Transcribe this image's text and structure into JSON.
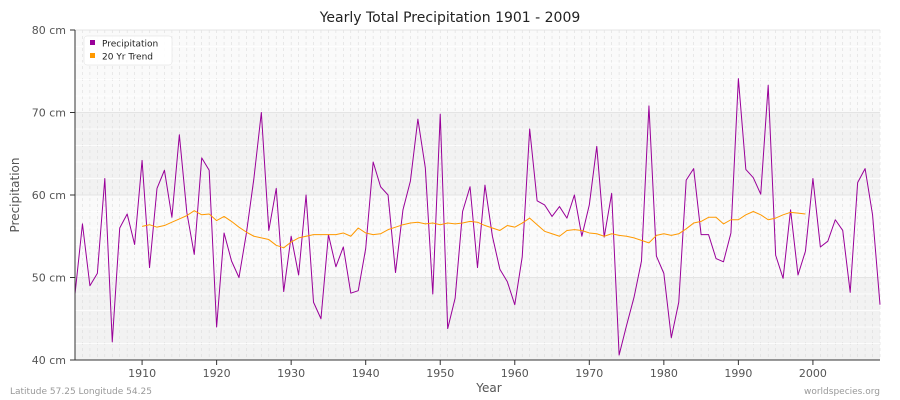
{
  "chart_data": {
    "type": "line",
    "title": "Yearly Total Precipitation 1901 - 2009",
    "xlabel": "Year",
    "ylabel": "Precipitation",
    "xlim": [
      1901,
      2009
    ],
    "ylim": [
      40,
      80
    ],
    "x_ticks": [
      1910,
      1920,
      1930,
      1940,
      1950,
      1960,
      1970,
      1980,
      1990,
      2000
    ],
    "y_ticks": [
      {
        "value": 40,
        "label": "40 cm"
      },
      {
        "value": 50,
        "label": "50 cm"
      },
      {
        "value": 60,
        "label": "60 cm"
      },
      {
        "value": 70,
        "label": "70 cm"
      },
      {
        "value": 80,
        "label": "80 cm"
      }
    ],
    "grid": true,
    "legend_position": "top-left",
    "series": [
      {
        "name": "Precipitation",
        "color": "#990099",
        "x_start": 1901,
        "values": [
          48,
          56.5,
          49,
          50.5,
          62,
          42.2,
          56,
          57.7,
          54,
          64.2,
          51.2,
          60.8,
          63,
          57.3,
          67.3,
          57.9,
          52.8,
          64.5,
          63,
          44,
          55.4,
          52,
          50,
          55.4,
          62,
          70,
          55.7,
          60.8,
          48.3,
          55,
          50.3,
          60,
          47,
          45,
          55.2,
          51.3,
          53.7,
          48.1,
          48.4,
          53.5,
          64,
          61,
          60,
          50.6,
          58.2,
          61.7,
          69.2,
          63.3,
          48,
          69.8,
          43.8,
          47.5,
          58,
          61,
          51.2,
          61.2,
          55,
          51,
          49.5,
          46.7,
          52.5,
          68,
          59.3,
          58.8,
          57.4,
          58.6,
          57.2,
          60,
          55,
          58.8,
          65.9,
          54.9,
          60.2,
          40.6,
          44.2,
          47.6,
          52,
          70.8,
          52.6,
          50.5,
          42.7,
          47,
          61.8,
          63.2,
          55.2,
          55.2,
          52.3,
          51.9,
          55.4,
          74.1,
          63.1,
          62.1,
          60.1,
          73.3,
          52.7,
          49.9,
          58.2,
          50.3,
          53.2,
          62,
          53.7,
          54.4,
          57,
          55.7,
          48.2,
          61.5,
          63.2,
          57.6,
          46.7
        ]
      },
      {
        "name": "20 Yr Trend",
        "color": "#ff9900",
        "x_start": 1910,
        "values": [
          56.2,
          56.4,
          56.1,
          56.3,
          56.7,
          57.1,
          57.5,
          58.1,
          57.6,
          57.7,
          56.9,
          57.4,
          56.8,
          56.1,
          55.5,
          55.0,
          54.8,
          54.6,
          53.9,
          53.6,
          54.3,
          54.8,
          55.0,
          55.2,
          55.2,
          55.2,
          55.2,
          55.4,
          55.0,
          56.0,
          55.4,
          55.2,
          55.3,
          55.8,
          56.1,
          56.4,
          56.6,
          56.7,
          56.5,
          56.6,
          56.4,
          56.6,
          56.5,
          56.6,
          56.8,
          56.7,
          56.3,
          56.0,
          55.7,
          56.3,
          56.1,
          56.6,
          57.2,
          56.4,
          55.6,
          55.3,
          55.0,
          55.7,
          55.8,
          55.7,
          55.4,
          55.3,
          55.0,
          55.3,
          55.1,
          55.0,
          54.8,
          54.5,
          54.2,
          55.1,
          55.3,
          55.1,
          55.3,
          55.9,
          56.6,
          56.8,
          57.3,
          57.3,
          56.5,
          57.0,
          57.0,
          57.6,
          58.0,
          57.6,
          57.0,
          57.2,
          57.6,
          57.9,
          57.8,
          57.7
        ]
      }
    ]
  },
  "footer": {
    "location": "Latitude 57.25 Longitude 54.25",
    "source": "worldspecies.org"
  }
}
